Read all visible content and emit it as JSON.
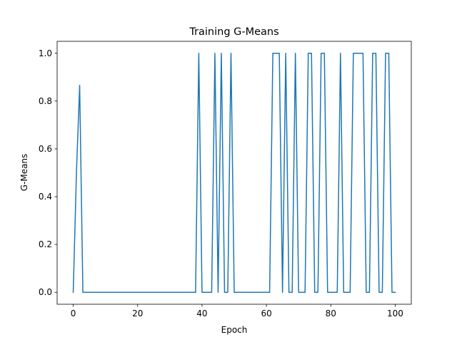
{
  "chart_data": {
    "type": "line",
    "title": "Training G-Means",
    "xlabel": "Epoch",
    "ylabel": "G-Means",
    "xlim": [
      -5,
      105
    ],
    "ylim": [
      -0.05,
      1.05
    ],
    "x_ticks": [
      0,
      20,
      40,
      60,
      80,
      100
    ],
    "x_tick_labels": [
      "0",
      "20",
      "40",
      "60",
      "80",
      "100"
    ],
    "y_ticks": [
      0.0,
      0.2,
      0.4,
      0.6,
      0.8,
      1.0
    ],
    "y_tick_labels": [
      "0.0",
      "0.2",
      "0.4",
      "0.6",
      "0.8",
      "1.0"
    ],
    "grid": false,
    "line_color": "#1f77b4",
    "series": [
      {
        "x": [
          0,
          1,
          2,
          3,
          4,
          5,
          6,
          7,
          8,
          9,
          10,
          11,
          12,
          13,
          14,
          15,
          16,
          17,
          18,
          19,
          20,
          21,
          22,
          23,
          24,
          25,
          26,
          27,
          28,
          29,
          30,
          31,
          32,
          33,
          34,
          35,
          36,
          37,
          38,
          39,
          40,
          41,
          42,
          43,
          44,
          45,
          46,
          47,
          48,
          49,
          50,
          51,
          52,
          53,
          54,
          55,
          56,
          57,
          58,
          59,
          60,
          61,
          62,
          63,
          64,
          65,
          66,
          67,
          68,
          69,
          70,
          71,
          72,
          73,
          74,
          75,
          76,
          77,
          78,
          79,
          80,
          81,
          82,
          83,
          84,
          85,
          86,
          87,
          88,
          89,
          90,
          91,
          92,
          93,
          94,
          95,
          96,
          97,
          98,
          99,
          100
        ],
        "values": [
          0,
          0.5,
          0.866,
          0,
          0,
          0,
          0,
          0,
          0,
          0,
          0,
          0,
          0,
          0,
          0,
          0,
          0,
          0,
          0,
          0,
          0,
          0,
          0,
          0,
          0,
          0,
          0,
          0,
          0,
          0,
          0,
          0,
          0,
          0,
          0,
          0,
          0,
          0,
          0,
          1,
          0,
          0,
          0,
          0,
          1,
          0,
          1,
          0,
          0,
          1,
          0,
          0,
          0,
          0,
          0,
          0,
          0,
          0,
          0,
          0,
          0,
          0,
          1,
          1,
          1,
          0,
          1,
          0,
          0,
          1,
          0,
          0,
          0,
          1,
          1,
          0,
          0,
          1,
          1,
          0,
          0,
          0,
          0,
          1,
          0,
          0,
          0,
          1,
          1,
          1,
          1,
          0,
          0,
          1,
          1,
          0,
          0,
          1,
          1,
          0,
          0
        ]
      }
    ]
  }
}
